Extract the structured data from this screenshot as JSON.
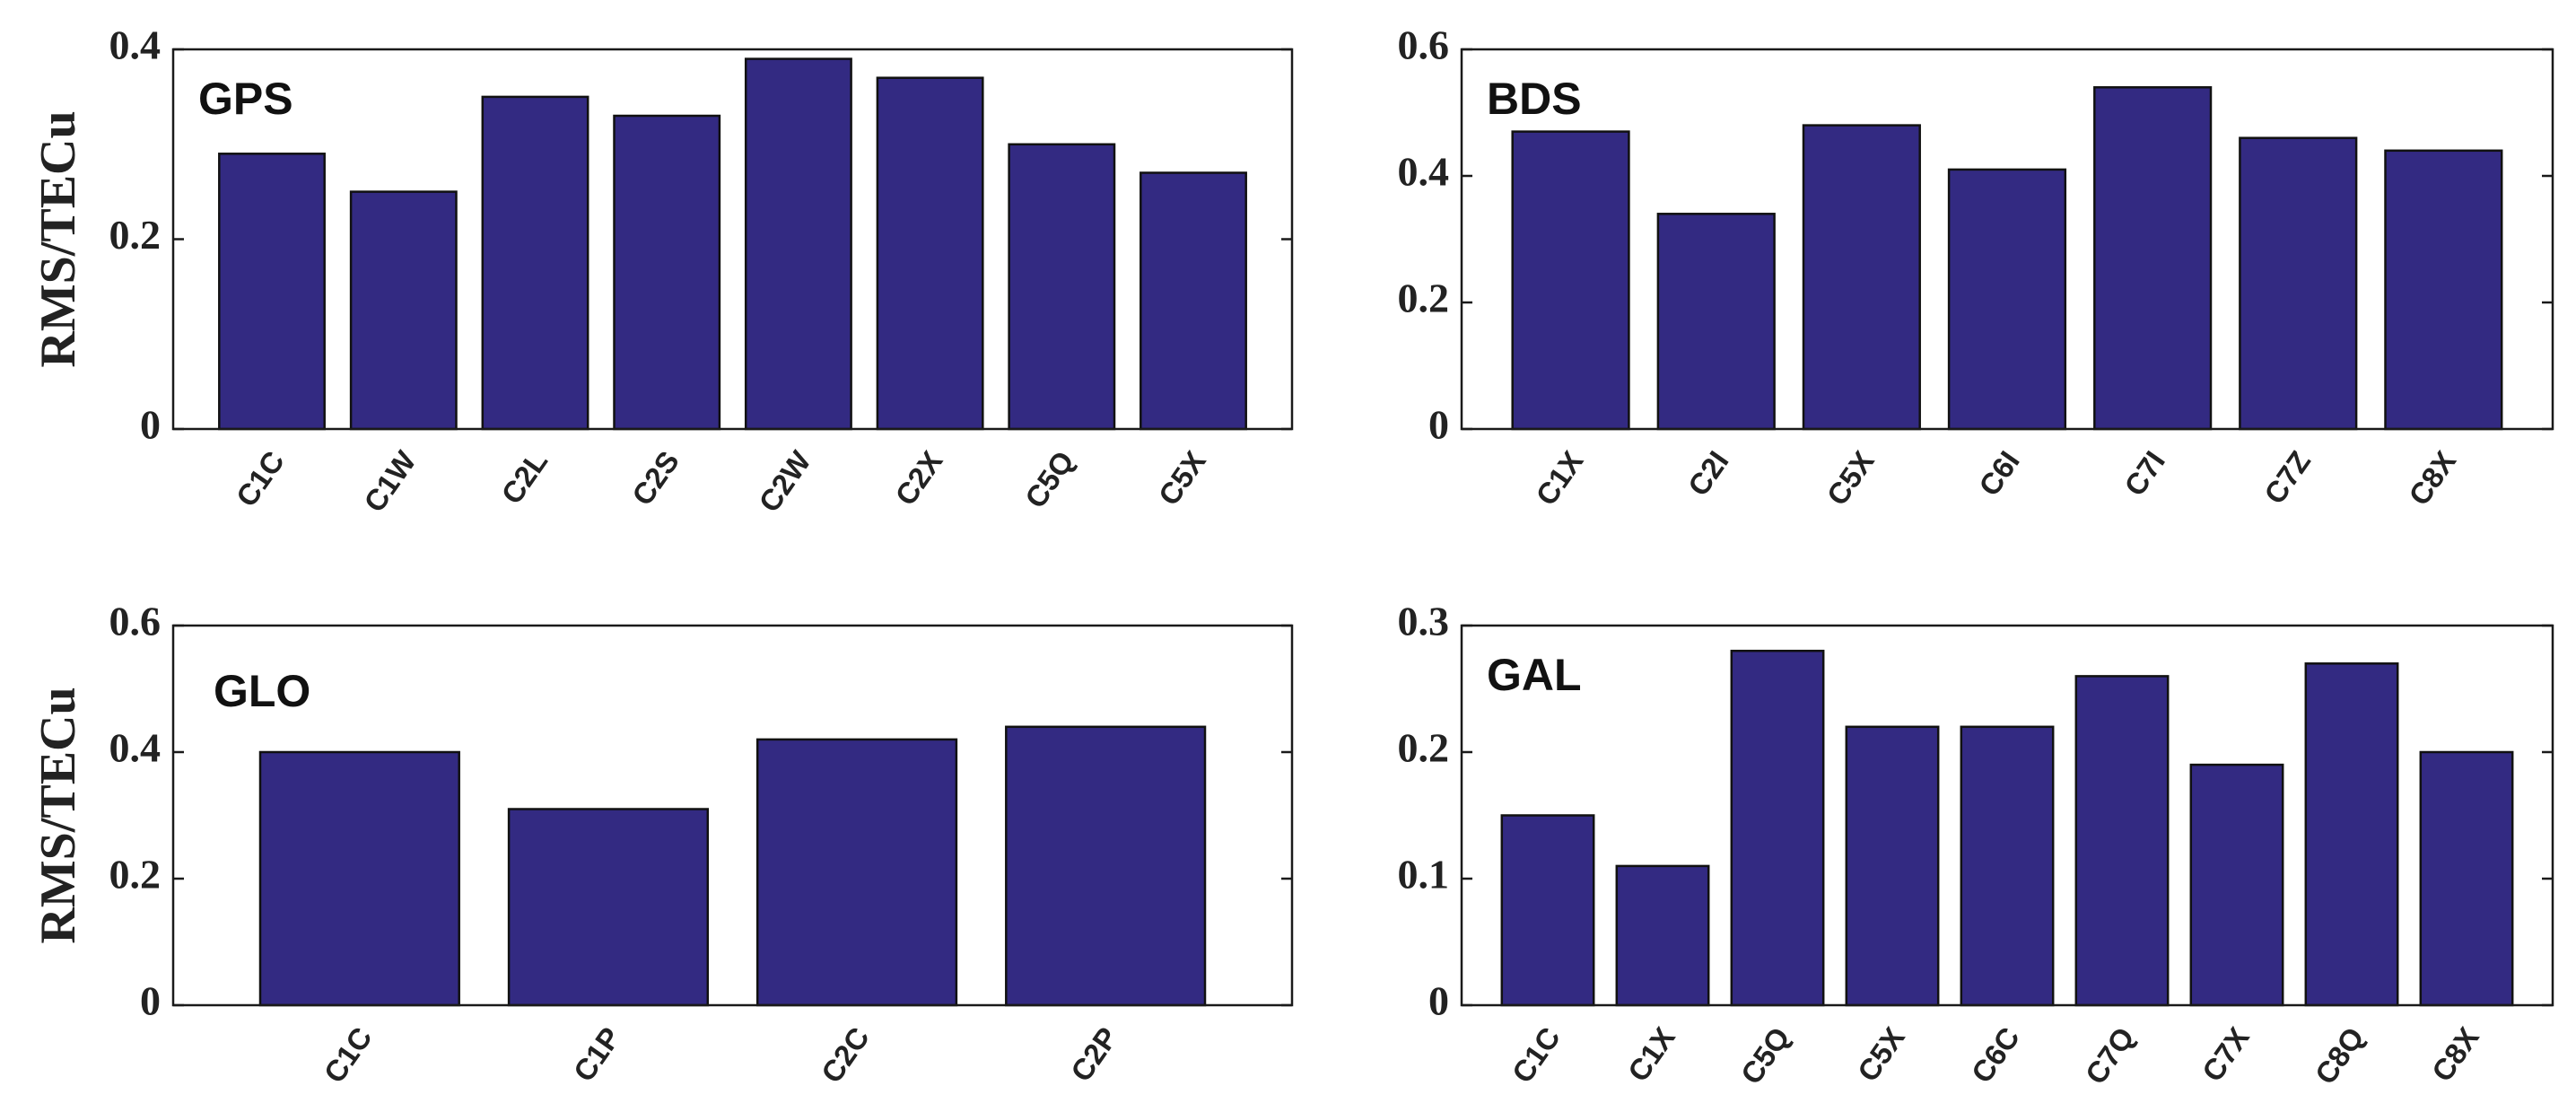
{
  "chart_data": [
    {
      "type": "bar",
      "title": "GPS",
      "ylabel": "RMS/TECu",
      "xlabel": "",
      "ylim": [
        0,
        0.4
      ],
      "yticks": [
        0,
        0.2,
        0.4
      ],
      "ytick_labels": [
        "0",
        "0.2",
        "0.4"
      ],
      "categories": [
        "C1C",
        "C1W",
        "C2L",
        "C2S",
        "C2W",
        "C2X",
        "C5Q",
        "C5X"
      ],
      "values": [
        0.29,
        0.25,
        0.35,
        0.33,
        0.39,
        0.37,
        0.3,
        0.27
      ],
      "bar_color": "#332a82"
    },
    {
      "type": "bar",
      "title": "BDS",
      "ylabel": "",
      "xlabel": "",
      "ylim": [
        0,
        0.6
      ],
      "yticks": [
        0,
        0.2,
        0.4,
        0.6
      ],
      "ytick_labels": [
        "0",
        "0.2",
        "0.4",
        "0.6"
      ],
      "categories": [
        "C1X",
        "C2I",
        "C5X",
        "C6I",
        "C7I",
        "C7Z",
        "C8X"
      ],
      "values": [
        0.47,
        0.34,
        0.48,
        0.41,
        0.54,
        0.46,
        0.44
      ],
      "bar_color": "#332a82"
    },
    {
      "type": "bar",
      "title": "GLO",
      "ylabel": "RMS/TECu",
      "xlabel": "",
      "ylim": [
        0,
        0.6
      ],
      "yticks": [
        0,
        0.2,
        0.4,
        0.6
      ],
      "ytick_labels": [
        "0",
        "0.2",
        "0.4",
        "0.6"
      ],
      "categories": [
        "C1C",
        "C1P",
        "C2C",
        "C2P"
      ],
      "values": [
        0.4,
        0.31,
        0.42,
        0.44
      ],
      "bar_color": "#332a82"
    },
    {
      "type": "bar",
      "title": "GAL",
      "ylabel": "",
      "xlabel": "",
      "ylim": [
        0,
        0.3
      ],
      "yticks": [
        0,
        0.1,
        0.2,
        0.3
      ],
      "ytick_labels": [
        "0",
        "0.1",
        "0.2",
        "0.3"
      ],
      "categories": [
        "C1C",
        "C1X",
        "C5Q",
        "C5X",
        "C6C",
        "C7Q",
        "C7X",
        "C8Q",
        "C8X"
      ],
      "values": [
        0.15,
        0.11,
        0.28,
        0.22,
        0.22,
        0.26,
        0.19,
        0.27,
        0.2
      ],
      "bar_color": "#332a82"
    }
  ]
}
